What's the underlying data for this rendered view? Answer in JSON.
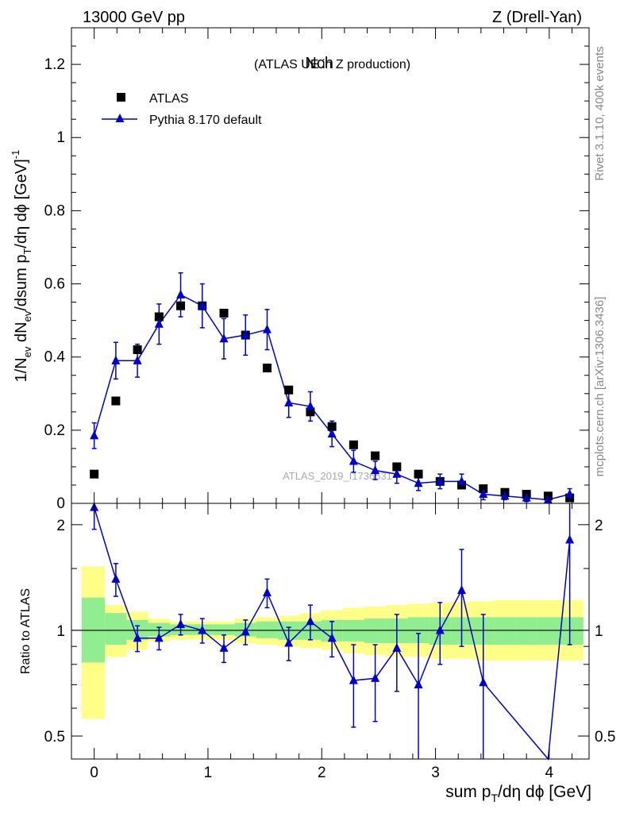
{
  "header": {
    "left": "13000 GeV pp",
    "right": "Z (Drell-Yan)"
  },
  "side_labels": {
    "rivet": "Rivet 3.1.10,  400k events",
    "mcplots": "mcplots.cern.ch [arXiv:1306.3436]"
  },
  "chart_data": [
    {
      "type": "scatter",
      "title": "Nch",
      "subtitle": "(ATLAS UE in Z production)",
      "watermark": "ATLAS_2019_I1736531",
      "xlabel_main": "sum p",
      "xlabel_sub": "T",
      "xlabel_tail": "/dη dϕ [GeV]",
      "ylabel": "1/N_ev dN_ev/dsum p_T/dη dϕ [GeV]^-1",
      "xlim": [
        -0.2,
        4.35
      ],
      "ylim": [
        0,
        1.3
      ],
      "x_ticks": [
        "0",
        "1",
        "2",
        "3",
        "4"
      ],
      "y_ticks": [
        "0",
        "0.2",
        "0.4",
        "0.6",
        "0.8",
        "1",
        "1.2"
      ],
      "legend_position": "top-left",
      "series": [
        {
          "name": "ATLAS",
          "marker": "square",
          "color": "#000000",
          "x": [
            0.0,
            0.19,
            0.38,
            0.57,
            0.76,
            0.95,
            1.14,
            1.33,
            1.52,
            1.71,
            1.9,
            2.09,
            2.28,
            2.47,
            2.66,
            2.85,
            3.04,
            3.23,
            3.42,
            3.61,
            3.8,
            3.99,
            4.18
          ],
          "y": [
            0.08,
            0.28,
            0.42,
            0.51,
            0.54,
            0.54,
            0.52,
            0.46,
            0.37,
            0.31,
            0.25,
            0.21,
            0.16,
            0.13,
            0.1,
            0.08,
            0.06,
            0.05,
            0.04,
            0.03,
            0.025,
            0.02,
            0.015
          ]
        },
        {
          "name": "Pythia 8.170 default",
          "marker": "triangle",
          "color": "#0000cc",
          "x": [
            0.0,
            0.19,
            0.38,
            0.57,
            0.76,
            0.95,
            1.14,
            1.33,
            1.52,
            1.71,
            1.9,
            2.09,
            2.28,
            2.47,
            2.66,
            2.85,
            3.04,
            3.23,
            3.42,
            3.61,
            3.8,
            3.99,
            4.18
          ],
          "y": [
            0.185,
            0.39,
            0.39,
            0.49,
            0.57,
            0.54,
            0.45,
            0.46,
            0.475,
            0.275,
            0.265,
            0.19,
            0.115,
            0.09,
            0.08,
            0.055,
            0.06,
            0.06,
            0.025,
            0.02,
            0.015,
            0.01,
            0.025
          ],
          "err": [
            0.035,
            0.05,
            0.045,
            0.055,
            0.06,
            0.06,
            0.055,
            0.055,
            0.055,
            0.04,
            0.04,
            0.035,
            0.03,
            0.025,
            0.025,
            0.02,
            0.02,
            0.02,
            0.015,
            0.01,
            0.01,
            0.008,
            0.015
          ]
        }
      ]
    },
    {
      "type": "scatter",
      "ylabel": "Ratio to ATLAS",
      "scale": "log",
      "ylim": [
        0.43,
        2.3
      ],
      "reference_line": 1,
      "y_ticks": [
        {
          "value": 0.5,
          "label": "0.5"
        },
        {
          "value": 1,
          "label": "1"
        },
        {
          "value": 2,
          "label": "2"
        }
      ],
      "band_edges": [
        -0.11,
        0.095,
        0.285,
        0.475,
        0.665,
        0.855,
        1.045,
        1.235,
        1.425,
        1.615,
        1.805,
        1.995,
        2.185,
        2.375,
        2.565,
        2.755,
        2.945,
        3.135,
        3.325,
        3.515,
        3.705,
        3.895,
        4.085,
        4.3
      ],
      "band_inner": {
        "color": "#90ee90",
        "low": [
          0.81,
          0.91,
          0.94,
          0.96,
          0.97,
          0.97,
          0.97,
          0.96,
          0.95,
          0.94,
          0.94,
          0.93,
          0.93,
          0.92,
          0.92,
          0.92,
          0.91,
          0.91,
          0.91,
          0.91,
          0.91,
          0.91,
          0.91
        ],
        "high": [
          1.24,
          1.12,
          1.07,
          1.05,
          1.04,
          1.04,
          1.04,
          1.05,
          1.06,
          1.06,
          1.06,
          1.07,
          1.07,
          1.08,
          1.08,
          1.09,
          1.09,
          1.09,
          1.09,
          1.09,
          1.09,
          1.09,
          1.09
        ]
      },
      "band_outer": {
        "color": "#ffff88",
        "low": [
          0.56,
          0.84,
          0.88,
          0.93,
          0.94,
          0.94,
          0.94,
          0.92,
          0.91,
          0.9,
          0.89,
          0.88,
          0.86,
          0.85,
          0.84,
          0.84,
          0.83,
          0.83,
          0.82,
          0.82,
          0.82,
          0.82,
          0.82
        ],
        "high": [
          1.52,
          1.18,
          1.13,
          1.08,
          1.06,
          1.06,
          1.06,
          1.08,
          1.09,
          1.1,
          1.12,
          1.14,
          1.16,
          1.17,
          1.18,
          1.19,
          1.2,
          1.21,
          1.21,
          1.22,
          1.22,
          1.22,
          1.22
        ]
      },
      "series": [
        {
          "name": "Pythia 8.170 default",
          "color": "#0000cc",
          "x": [
            0.0,
            0.19,
            0.38,
            0.57,
            0.76,
            0.95,
            1.14,
            1.33,
            1.52,
            1.71,
            1.9,
            2.09,
            2.28,
            2.47,
            2.66,
            2.85,
            3.04,
            3.23,
            3.42,
            3.99,
            4.18
          ],
          "y": [
            2.24,
            1.4,
            0.95,
            0.95,
            1.04,
            1.0,
            0.89,
            0.99,
            1.28,
            0.92,
            1.06,
            0.95,
            0.72,
            0.73,
            0.89,
            0.7,
            1.0,
            1.3,
            0.71,
            0.43,
            1.81
          ],
          "err_low": [
            0.3,
            0.15,
            0.08,
            0.07,
            0.07,
            0.08,
            0.08,
            0.08,
            0.12,
            0.1,
            0.12,
            0.11,
            0.19,
            0.18,
            0.22,
            0.28,
            0.2,
            0.4,
            0.4,
            0.0,
            0.9
          ],
          "err_high": [
            0.3,
            0.15,
            0.08,
            0.07,
            0.07,
            0.08,
            0.08,
            0.08,
            0.12,
            0.1,
            0.12,
            0.11,
            0.19,
            0.18,
            0.22,
            0.28,
            0.2,
            0.4,
            0.4,
            0.0,
            0.9
          ]
        }
      ]
    }
  ]
}
